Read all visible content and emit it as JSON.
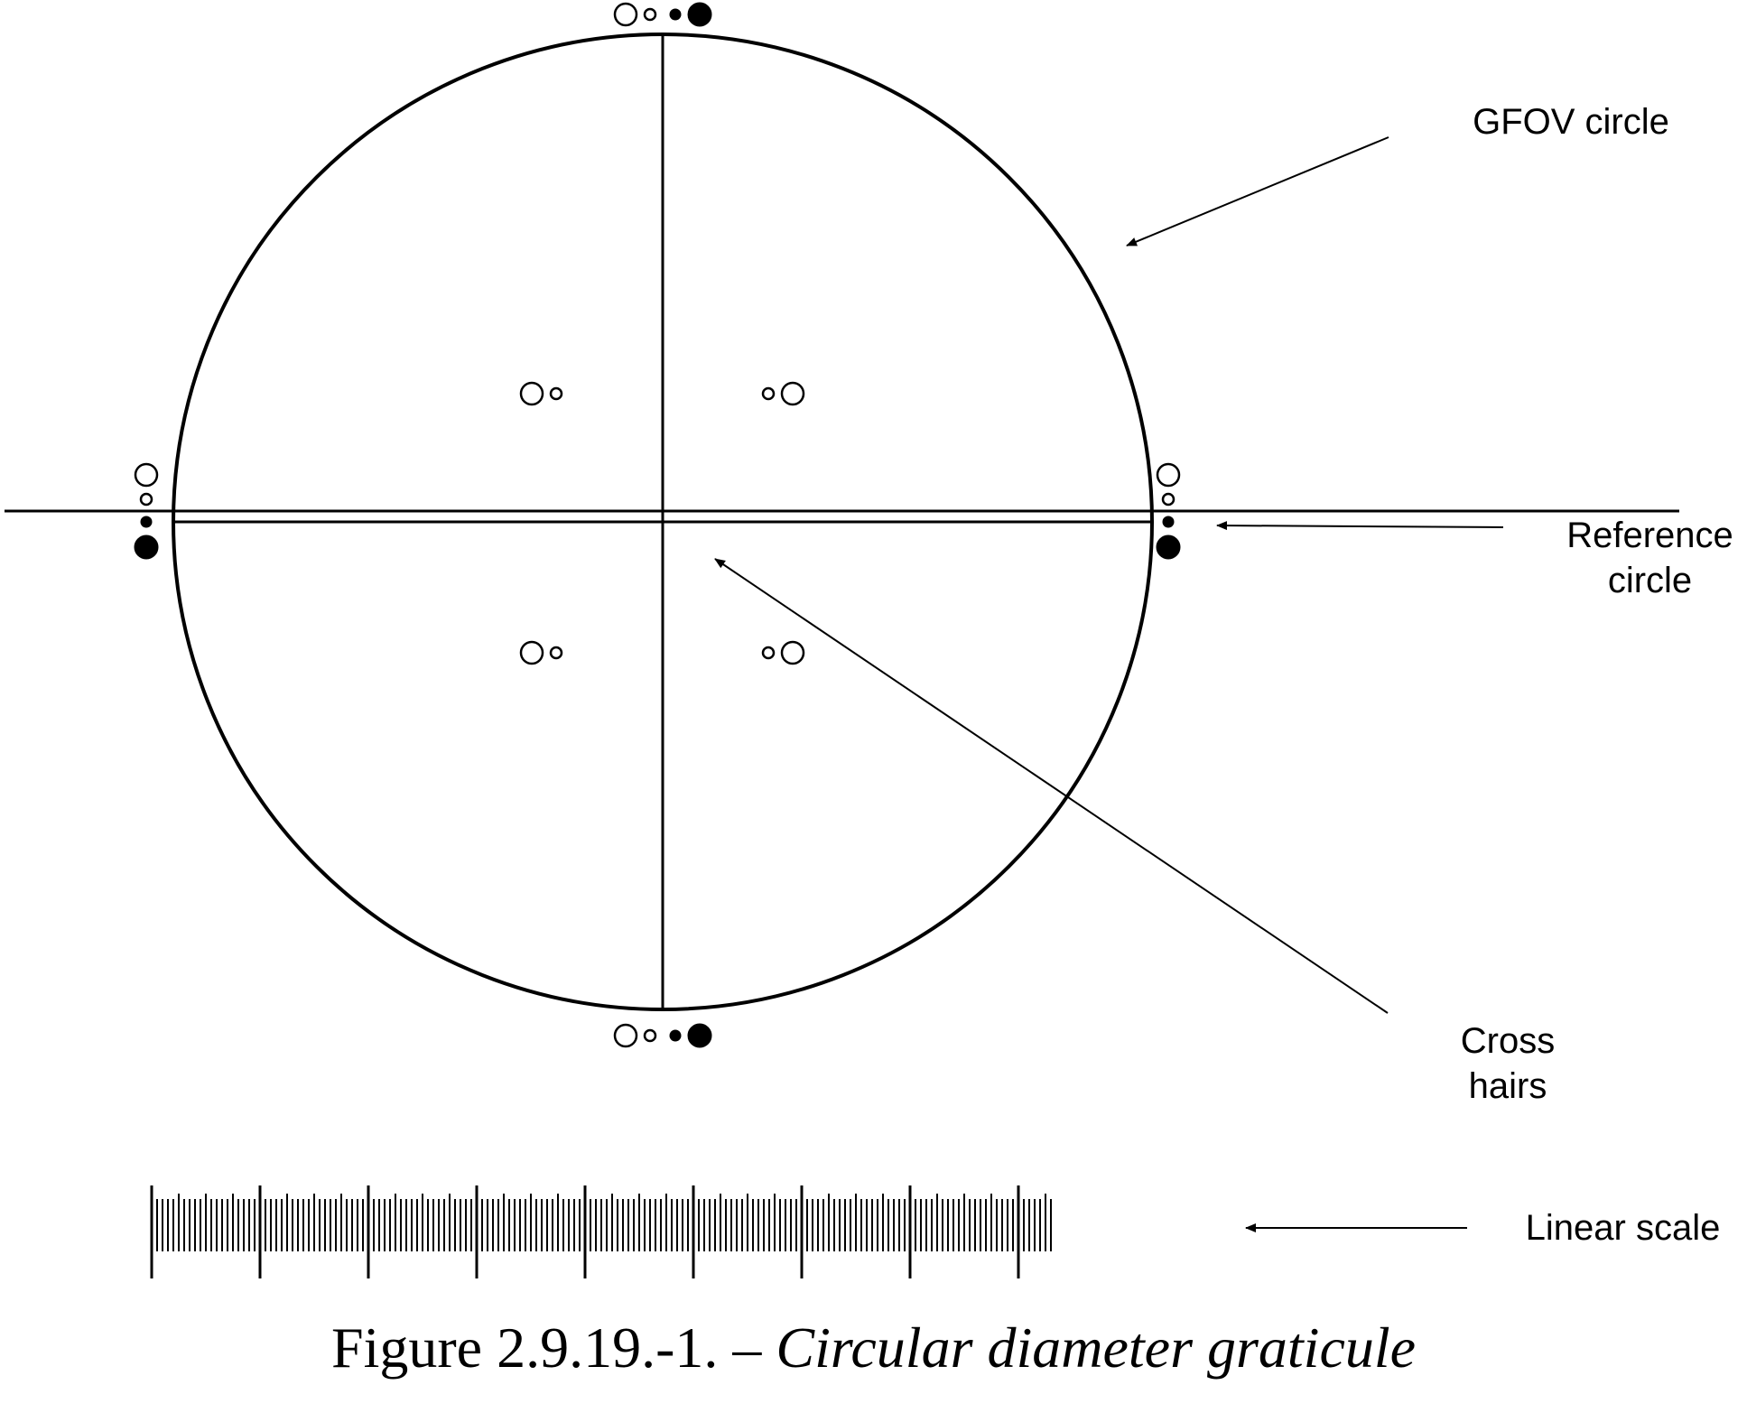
{
  "labels": {
    "gfov": "GFOV circle",
    "reference_line1": "Reference",
    "reference_line2": "circle",
    "cross_line1": "Cross",
    "cross_line2": "hairs",
    "linear_scale": "Linear scale"
  },
  "caption": {
    "number": "Figure 2.9.19.-1. –",
    "title": "Circular diameter graticule"
  },
  "colors": {
    "ink": "#000000",
    "paper": "#ffffff"
  },
  "icons": [
    "arrow-icon",
    "open-circle-icon",
    "filled-dot-icon"
  ]
}
